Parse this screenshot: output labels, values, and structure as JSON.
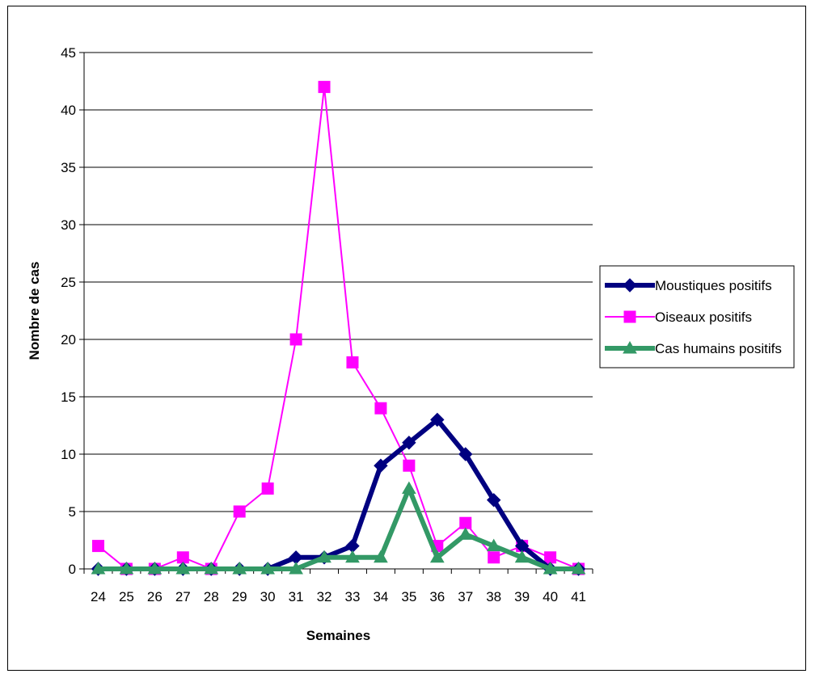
{
  "chart_data": {
    "type": "line",
    "xlabel": "Semaines",
    "ylabel": "Nombre de cas",
    "categories": [
      "24",
      "25",
      "26",
      "27",
      "28",
      "29",
      "30",
      "31",
      "32",
      "33",
      "34",
      "35",
      "36",
      "37",
      "38",
      "39",
      "40",
      "41"
    ],
    "ylim": [
      0,
      45
    ],
    "yticks": [
      "0",
      "5",
      "10",
      "15",
      "20",
      "25",
      "30",
      "35",
      "40",
      "45"
    ],
    "grid": "horizontal",
    "legend_position": "right",
    "series": [
      {
        "name": "Moustiques positifs",
        "color": "#000080",
        "marker": "diamond",
        "values": [
          0,
          0,
          0,
          0,
          0,
          0,
          0,
          1,
          1,
          2,
          9,
          11,
          13,
          10,
          6,
          2,
          0,
          0
        ]
      },
      {
        "name": "Oiseaux positifs",
        "color": "#FF00FF",
        "marker": "square",
        "values": [
          2,
          0,
          0,
          1,
          0,
          5,
          7,
          20,
          42,
          18,
          14,
          9,
          2,
          4,
          1,
          2,
          1,
          0
        ]
      },
      {
        "name": "Cas humains positifs",
        "color": "#339966",
        "marker": "triangle",
        "values": [
          0,
          0,
          0,
          0,
          0,
          0,
          0,
          0,
          1,
          1,
          1,
          7,
          1,
          3,
          2,
          1,
          0,
          0
        ]
      }
    ]
  }
}
